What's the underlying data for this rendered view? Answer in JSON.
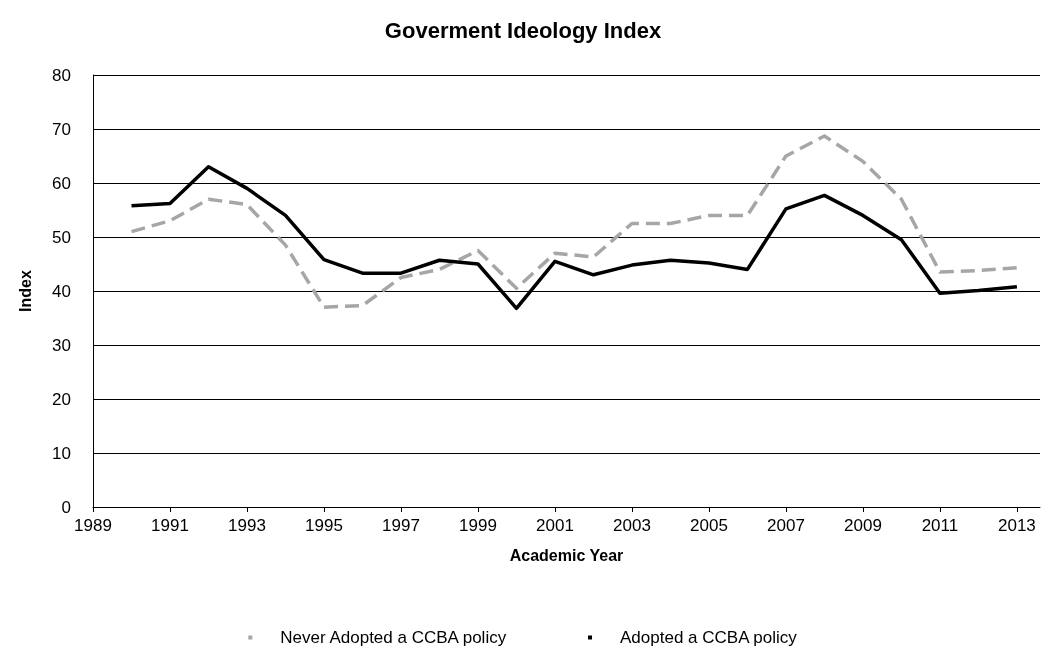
{
  "chart_data": {
    "type": "line",
    "title": "Goverment Ideology Index",
    "xlabel": "Academic Year",
    "ylabel": "Index",
    "x": [
      1990,
      1991,
      1992,
      1993,
      1994,
      1995,
      1996,
      1997,
      1998,
      1999,
      2000,
      2001,
      2002,
      2003,
      2004,
      2005,
      2006,
      2007,
      2008,
      2009,
      2010,
      2011,
      2012,
      2013
    ],
    "series": [
      {
        "name": "Never Adopted a CCBA policy",
        "color": "#a6a6a6",
        "line_style": "dashed",
        "values": [
          51,
          53,
          57,
          56,
          48.5,
          37,
          37.3,
          42.5,
          44,
          47.5,
          40.5,
          47,
          46.3,
          52.5,
          52.5,
          54,
          54,
          65,
          68.7,
          64,
          57,
          43.5,
          43.8,
          44.3
        ]
      },
      {
        "name": "Adopted a CCBA policy",
        "color": "#000000",
        "line_style": "solid",
        "values": [
          55.8,
          56.2,
          63,
          59,
          54,
          45.8,
          43.3,
          43.3,
          45.7,
          45,
          36.8,
          45.5,
          43,
          44.8,
          45.7,
          45.2,
          44,
          55.2,
          57.7,
          54,
          49.5,
          39.6,
          40.1,
          40.8
        ]
      }
    ],
    "xlim": [
      1989,
      2013.6
    ],
    "xticks": [
      1989,
      1991,
      1993,
      1995,
      1997,
      1999,
      2001,
      2003,
      2005,
      2007,
      2009,
      2011,
      2013
    ],
    "ylim": [
      0,
      80
    ],
    "yticks": [
      0,
      10,
      20,
      30,
      40,
      50,
      60,
      70,
      80
    ],
    "grid": "y",
    "legend": "bottom",
    "marker": "none"
  }
}
